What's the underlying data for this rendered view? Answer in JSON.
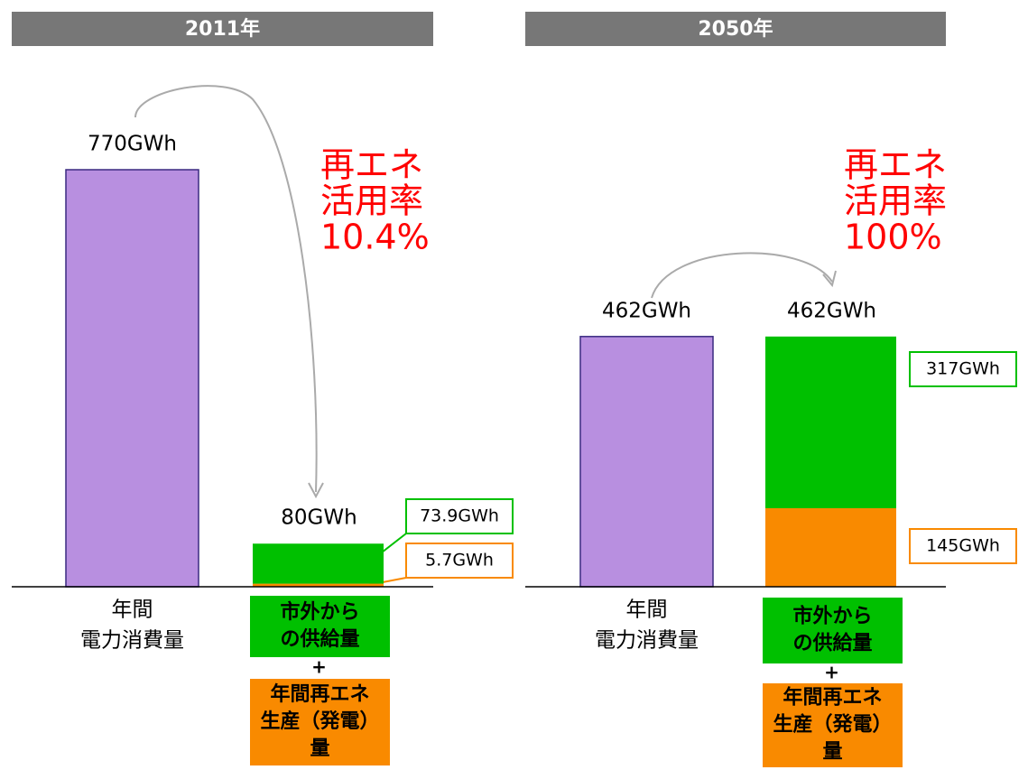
{
  "chart_data": [
    {
      "type": "stacked-bar",
      "title": "2011年",
      "ylim": [
        0,
        800
      ],
      "annotation": [
        "再エネ",
        "活用率",
        "10.4%"
      ],
      "consumption": {
        "label": [
          "年間",
          "電力消費量"
        ],
        "value": 770,
        "value_label": "770GWh",
        "color": "#b88fe0"
      },
      "supply": {
        "total_label": "80GWh",
        "plus": "+",
        "series": [
          {
            "name": [
              "市外から",
              "の供給量"
            ],
            "color": "#00c000",
            "value": 73.9,
            "value_label": "73.9GWh"
          },
          {
            "name": [
              "年間再エネ",
              "生産（発電）",
              "量"
            ],
            "color": "#f98a00",
            "value": 5.7,
            "value_label": "5.7GWh"
          }
        ]
      }
    },
    {
      "type": "stacked-bar",
      "title": "2050年",
      "ylim": [
        0,
        800
      ],
      "annotation": [
        "再エネ",
        "活用率",
        "100%"
      ],
      "consumption": {
        "label": [
          "年間",
          "電力消費量"
        ],
        "value": 462,
        "value_label": "462GWh",
        "color": "#b88fe0"
      },
      "supply": {
        "total_label": "462GWh",
        "plus": "+",
        "series": [
          {
            "name": [
              "市外から",
              "の供給量"
            ],
            "color": "#00c000",
            "value": 317,
            "value_label": "317GWh"
          },
          {
            "name": [
              "年間再エネ",
              "生産（発電）",
              "量"
            ],
            "color": "#f98a00",
            "value": 145,
            "value_label": "145GWh"
          }
        ]
      }
    }
  ]
}
